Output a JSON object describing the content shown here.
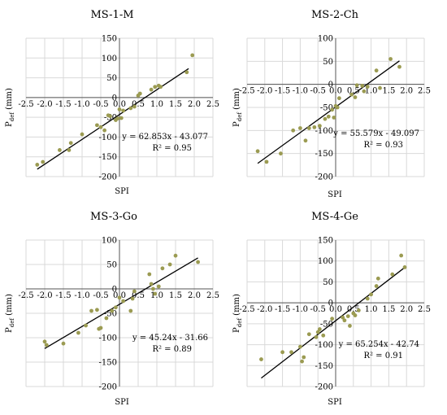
{
  "colors": {
    "points": "#9b9b52",
    "fit": "#000000",
    "grid": "#d9d9d9",
    "axis": "#555555"
  },
  "chart_data": [
    {
      "type": "scatter",
      "title": "MS-1-M",
      "xlabel": "SPI",
      "ylabel_main": "P",
      "ylabel_sub": "def",
      "ylabel_tail": " (mm)",
      "xlim": [
        -2.5,
        2.5
      ],
      "ylim": [
        -200,
        150
      ],
      "xticks": [
        "-2.5",
        "-2.0",
        "-1.5",
        "-1.0",
        "-0.5",
        "0.0",
        "0.5",
        "1.0",
        "1.5",
        "2.0",
        "2.5"
      ],
      "yticks": [
        "150",
        "100",
        "50",
        "0",
        "-50",
        "-100",
        "-150",
        "-200"
      ],
      "grid": true,
      "trendline": {
        "slope": 62.853,
        "intercept": -43.077,
        "x_range": [
          -2.2,
          1.85
        ]
      },
      "equation": "y = 62.853x - 43.077",
      "r2": "R² = 0.95",
      "points": [
        [
          -2.2,
          -170
        ],
        [
          -2.05,
          -163
        ],
        [
          -1.6,
          -133
        ],
        [
          -1.35,
          -133
        ],
        [
          -1.3,
          -115
        ],
        [
          -1.0,
          -93
        ],
        [
          -0.6,
          -70
        ],
        [
          -0.5,
          -75
        ],
        [
          -0.4,
          -83
        ],
        [
          -0.3,
          -45
        ],
        [
          -0.25,
          -47
        ],
        [
          -0.1,
          -57
        ],
        [
          -0.05,
          -53
        ],
        [
          0.0,
          -30
        ],
        [
          0.05,
          -52
        ],
        [
          0.1,
          -33
        ],
        [
          0.3,
          -27
        ],
        [
          0.4,
          -23
        ],
        [
          0.5,
          5
        ],
        [
          0.55,
          10
        ],
        [
          0.85,
          20
        ],
        [
          0.95,
          27
        ],
        [
          1.05,
          30
        ],
        [
          1.1,
          27
        ],
        [
          1.8,
          64
        ],
        [
          1.95,
          107
        ]
      ]
    },
    {
      "type": "scatter",
      "title": "MS-2-Ch",
      "xlabel": "SPI",
      "ylabel_main": "P",
      "ylabel_sub": "def",
      "ylabel_tail": " (mm)",
      "xlim": [
        -2.5,
        2.5
      ],
      "ylim": [
        -200,
        100
      ],
      "xticks": [
        "-2.5",
        "-2.0",
        "-1.5",
        "-1.0",
        "-0.5",
        "0.0",
        "0.5",
        "1.0",
        "1.5",
        "2.0",
        "2.5"
      ],
      "yticks": [
        "100",
        "50",
        "0",
        "-50",
        "-100",
        "-150",
        "-200"
      ],
      "grid": true,
      "trendline": {
        "slope": 55.579,
        "intercept": -49.097,
        "x_range": [
          -2.2,
          1.8
        ]
      },
      "equation": "y = 55.579x - 49.097",
      "r2": "R² = 0.93",
      "points": [
        [
          -2.2,
          -145
        ],
        [
          -1.95,
          -168
        ],
        [
          -1.55,
          -150
        ],
        [
          -1.2,
          -100
        ],
        [
          -1.0,
          -95
        ],
        [
          -0.85,
          -122
        ],
        [
          -0.75,
          -95
        ],
        [
          -0.6,
          -93
        ],
        [
          -0.45,
          -90
        ],
        [
          -0.3,
          -75
        ],
        [
          -0.2,
          -70
        ],
        [
          -0.1,
          -55
        ],
        [
          -0.05,
          -72
        ],
        [
          0.0,
          -47
        ],
        [
          0.05,
          -50
        ],
        [
          0.1,
          -30
        ],
        [
          0.45,
          -22
        ],
        [
          0.55,
          -28
        ],
        [
          0.6,
          -2
        ],
        [
          0.75,
          -3
        ],
        [
          0.8,
          -15
        ],
        [
          0.9,
          -5
        ],
        [
          1.15,
          30
        ],
        [
          1.25,
          -8
        ],
        [
          1.55,
          55
        ],
        [
          1.8,
          38
        ]
      ]
    },
    {
      "type": "scatter",
      "title": "MS-3-Go",
      "xlabel": "SPI",
      "ylabel_main": "P",
      "ylabel_sub": "def",
      "ylabel_tail": " (mm)",
      "xlim": [
        -2.5,
        2.5
      ],
      "ylim": [
        -200,
        100
      ],
      "xticks": [
        "-2.5",
        "-2.0",
        "-1.5",
        "-1.0",
        "-0.5",
        "0.0",
        "0.5",
        "1.0",
        "1.5",
        "2.0",
        "2.5"
      ],
      "yticks": [
        "100",
        "50",
        "0",
        "-50",
        "-100",
        "-150",
        "-200"
      ],
      "grid": true,
      "trendline": {
        "slope": 45.24,
        "intercept": -31.66,
        "x_range": [
          -2.0,
          2.1
        ]
      },
      "equation": "y = 45.24x - 31.66",
      "r2": "R² = 0.89",
      "points": [
        [
          -2.0,
          -108
        ],
        [
          -1.95,
          -115
        ],
        [
          -1.5,
          -112
        ],
        [
          -1.1,
          -90
        ],
        [
          -0.9,
          -75
        ],
        [
          -0.75,
          -45
        ],
        [
          -0.6,
          -43
        ],
        [
          -0.55,
          -82
        ],
        [
          -0.5,
          -80
        ],
        [
          -0.35,
          -60
        ],
        [
          -0.2,
          -45
        ],
        [
          -0.1,
          -38
        ],
        [
          0.0,
          -18
        ],
        [
          0.1,
          -25
        ],
        [
          0.3,
          -45
        ],
        [
          0.35,
          -20
        ],
        [
          0.4,
          -5
        ],
        [
          0.8,
          30
        ],
        [
          0.85,
          10
        ],
        [
          0.9,
          0
        ],
        [
          0.95,
          -10
        ],
        [
          1.05,
          5
        ],
        [
          1.15,
          42
        ],
        [
          1.35,
          50
        ],
        [
          1.5,
          68
        ],
        [
          2.1,
          55
        ]
      ]
    },
    {
      "type": "scatter",
      "title": "MS-4-Ge",
      "xlabel": "SPI",
      "ylabel_main": "P",
      "ylabel_sub": "def",
      "ylabel_tail": " (mm)",
      "xlim": [
        -2.5,
        2.5
      ],
      "ylim": [
        -200,
        150
      ],
      "xticks": [
        "-2.5",
        "-2.0",
        "-1.5",
        "-1.0",
        "-0.5",
        "0.0",
        "0.5",
        "1.0",
        "1.5",
        "2.0",
        "2.5"
      ],
      "yticks": [
        "150",
        "100",
        "50",
        "0",
        "-50",
        "-100",
        "-150",
        "-200"
      ],
      "grid": true,
      "trendline": {
        "slope": 65.254,
        "intercept": -42.74,
        "x_range": [
          -2.1,
          1.95
        ]
      },
      "equation": "y = 65.254x - 42.74",
      "r2": "R² = 0.91",
      "points": [
        [
          -2.1,
          -135
        ],
        [
          -1.5,
          -118
        ],
        [
          -1.25,
          -118
        ],
        [
          -1.0,
          -105
        ],
        [
          -0.95,
          -140
        ],
        [
          -0.9,
          -130
        ],
        [
          -0.75,
          -75
        ],
        [
          -0.55,
          -82
        ],
        [
          -0.5,
          -70
        ],
        [
          -0.45,
          -63
        ],
        [
          -0.35,
          -78
        ],
        [
          -0.1,
          -38
        ],
        [
          0.2,
          -35
        ],
        [
          0.25,
          -42
        ],
        [
          0.35,
          -32
        ],
        [
          0.4,
          -55
        ],
        [
          0.5,
          -25
        ],
        [
          0.55,
          -30
        ],
        [
          0.65,
          -18
        ],
        [
          0.9,
          10
        ],
        [
          1.0,
          20
        ],
        [
          1.15,
          40
        ],
        [
          1.2,
          58
        ],
        [
          1.6,
          68
        ],
        [
          1.85,
          113
        ],
        [
          1.95,
          85
        ]
      ]
    }
  ]
}
